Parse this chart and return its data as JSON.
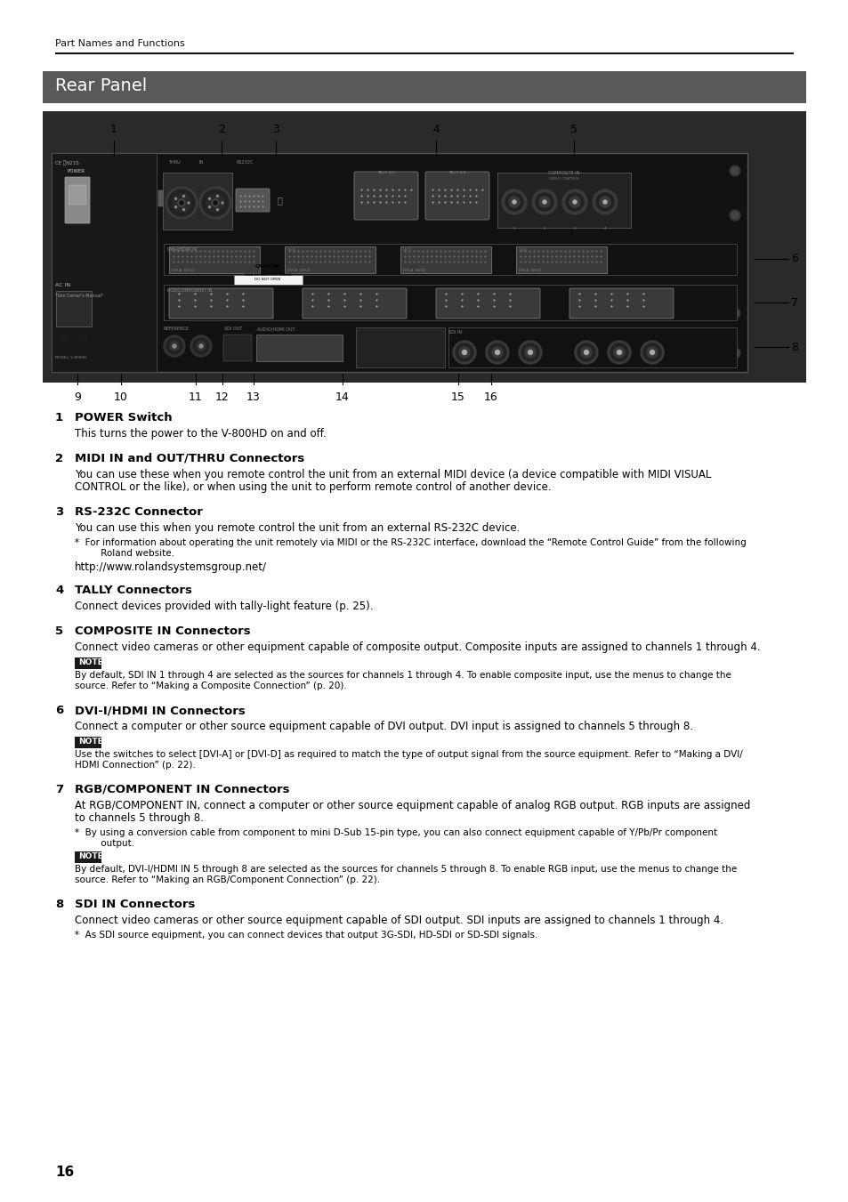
{
  "page_bg": "#ffffff",
  "header_text": "Part Names and Functions",
  "section_title": "Rear Panel",
  "section_title_bg": "#595959",
  "section_title_color": "#ffffff",
  "page_number": "16",
  "items": [
    {
      "num": "1",
      "title": "POWER Switch",
      "body": "This turns the power to the V-800HD on and off.",
      "note": null,
      "note_text": null,
      "asterisk": null,
      "url": null
    },
    {
      "num": "2",
      "title": "MIDI IN and OUT/THRU Connectors",
      "body": "You can use these when you remote control the unit from an external MIDI device (a device compatible with MIDI VISUAL\nCONTROL or the like), or when using the unit to perform remote control of another device.",
      "note": null,
      "note_text": null,
      "asterisk": null,
      "url": null
    },
    {
      "num": "3",
      "title": "RS-232C Connector",
      "body": "You can use this when you remote control the unit from an external RS-232C device.",
      "note": null,
      "note_text": null,
      "asterisk": "For information about operating the unit remotely via MIDI or the RS-232C interface, download the “Remote Control Guide” from the following\n   Roland website.",
      "url": "http://www.rolandsystemsgroup.net/"
    },
    {
      "num": "4",
      "title": "TALLY Connectors",
      "body": "Connect devices provided with tally-light feature (p. 25).",
      "note": null,
      "note_text": null,
      "asterisk": null,
      "url": null
    },
    {
      "num": "5",
      "title": "COMPOSITE IN Connectors",
      "body": "Connect video cameras or other equipment capable of composite output. Composite inputs are assigned to channels 1 through 4.",
      "note": "NOTE",
      "note_text": "By default, SDI IN 1 through 4 are selected as the sources for channels 1 through 4. To enable composite input, use the menus to change the\nsource. Refer to “Making a Composite Connection” (p. 20).",
      "asterisk": null,
      "url": null
    },
    {
      "num": "6",
      "title": "DVI-I/HDMI IN Connectors",
      "body": "Connect a computer or other source equipment capable of DVI output. DVI input is assigned to channels 5 through 8.",
      "note": "NOTE",
      "note_text": "Use the switches to select [DVI-A] or [DVI-D] as required to match the type of output signal from the source equipment. Refer to “Making a DVI/\nHDMI Connection” (p. 22).",
      "asterisk": null,
      "url": null
    },
    {
      "num": "7",
      "title": "RGB/COMPONENT IN Connectors",
      "body": "At RGB/COMPONENT IN, connect a computer or other source equipment capable of analog RGB output. RGB inputs are assigned\nto channels 5 through 8.",
      "note": "NOTE",
      "note_text": "By default, DVI-I/HDMI IN 5 through 8 are selected as the sources for channels 5 through 8. To enable RGB input, use the menus to change the\nsource. Refer to “Making an RGB/Component Connection” (p. 22).",
      "asterisk": "By using a conversion cable from component to mini D-Sub 15-pin type, you can also connect equipment capable of Y/Pb/Pr component\n   output.",
      "url": null
    },
    {
      "num": "8",
      "title": "SDI IN Connectors",
      "body": "Connect video cameras or other source equipment capable of SDI output. SDI inputs are assigned to channels 1 through 4.",
      "note": null,
      "note_text": null,
      "asterisk": "As SDI source equipment, you can connect devices that output 3G-SDI, HD-SDI or SD-SDI signals.",
      "url": null
    }
  ],
  "note_bg": "#1a1a1a",
  "note_color": "#ffffff",
  "note_label": "NOTE"
}
